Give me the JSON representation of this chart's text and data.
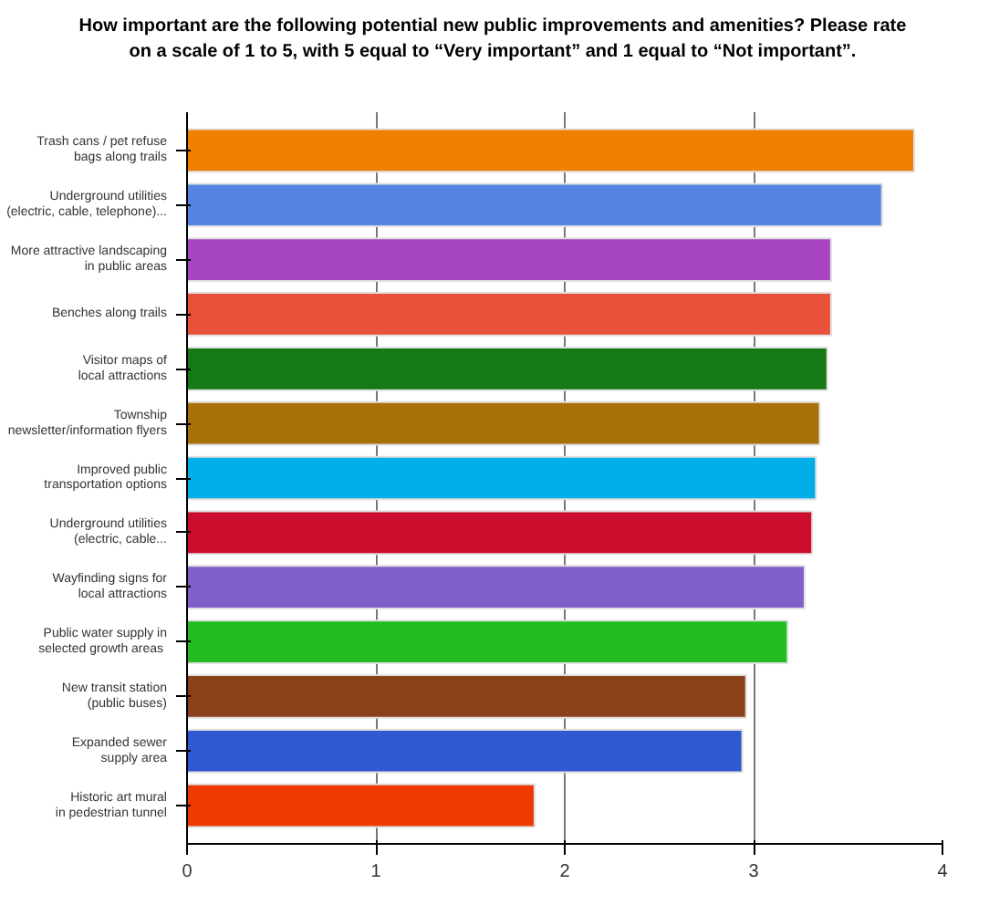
{
  "chart_data": {
    "type": "bar",
    "orientation": "horizontal",
    "title": "How important are the following potential new public improvements and amenities?  Please rate\non a scale of 1 to 5, with 5 equal to “Very important” and 1 equal to “Not important”.",
    "categories": [
      "Trash cans / pet refuse\nbags along trails",
      "Underground utilities\n(electric, cable, telephone)...",
      "More attractive landscaping\nin public areas",
      "Benches along trails",
      "Visitor maps of\nlocal attractions",
      "Township\nnewsletter/information flyers",
      "Improved public\ntransportation options",
      "Underground utilities\n(electric, cable...",
      "Wayfinding signs for\nlocal attractions",
      "Public water supply in\nselected  growth areas",
      "New transit station\n(public buses)",
      "Expanded sewer\nsupply area",
      "Historic art mural\nin pedestrian tunnel"
    ],
    "values": [
      3.85,
      3.68,
      3.41,
      3.41,
      3.39,
      3.35,
      3.33,
      3.31,
      3.27,
      3.18,
      2.96,
      2.94,
      1.84
    ],
    "colors": [
      "#f08000",
      "#5585e0",
      "#a845c0",
      "#e8503a",
      "#157a15",
      "#a87008",
      "#00aeea",
      "#cc0c2c",
      "#8060c8",
      "#22bb22",
      "#8a4018",
      "#3058d0",
      "#ee3a00"
    ],
    "xlim": [
      0,
      4
    ],
    "xticks": [
      0,
      1,
      2,
      3,
      4
    ],
    "grid": "x"
  }
}
